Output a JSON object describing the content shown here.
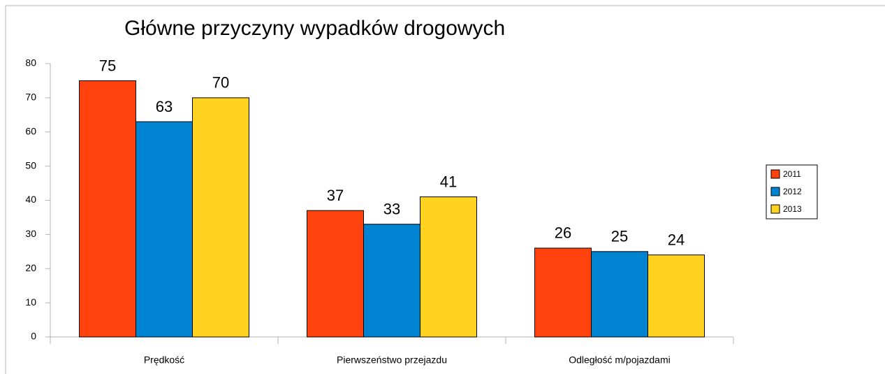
{
  "chart_data": {
    "type": "bar",
    "title": "Główne przyczyny wypadków drogowych",
    "categories": [
      "Prędkość",
      "Pierwszeństwo przejazdu",
      "Odległość m/pojazdami"
    ],
    "series": [
      {
        "name": "2011",
        "color": "#ff420e",
        "values": [
          75,
          37,
          26
        ]
      },
      {
        "name": "2012",
        "color": "#0084d1",
        "values": [
          63,
          33,
          25
        ]
      },
      {
        "name": "2013",
        "color": "#ffd320",
        "values": [
          70,
          41,
          24
        ]
      }
    ],
    "ylim": [
      0,
      80
    ],
    "yticks": [
      0,
      10,
      20,
      30,
      40,
      50,
      60,
      70,
      80
    ],
    "legend": "right"
  }
}
